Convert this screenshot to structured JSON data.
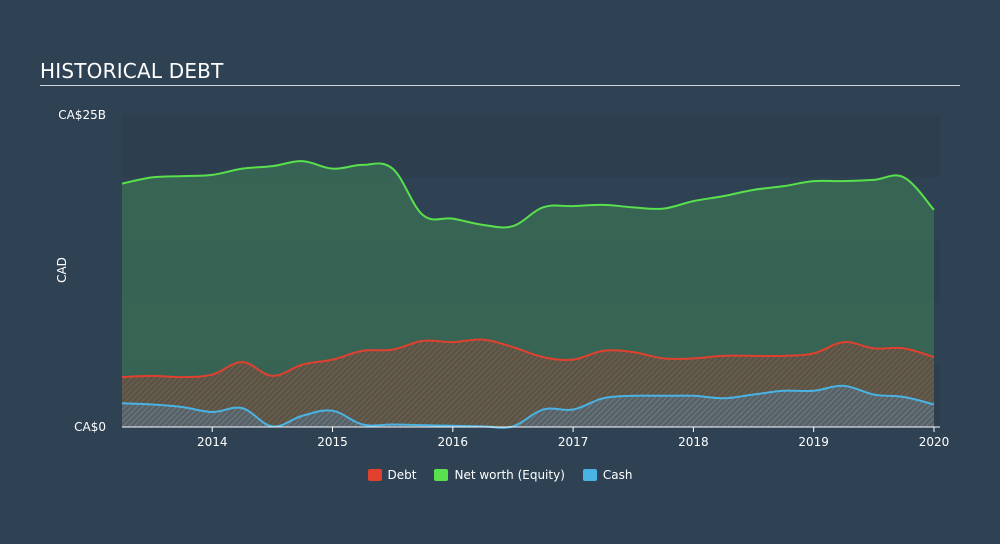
{
  "header": {
    "title": "HISTORICAL DEBT"
  },
  "chart_data": {
    "type": "area",
    "title": "HISTORICAL DEBT",
    "ylabel": "CAD",
    "ylim": [
      0,
      25
    ],
    "xlim": [
      2013.25,
      2020.05
    ],
    "y_tick_labels": [
      {
        "value": 25,
        "label": "CA$25B"
      },
      {
        "value": 0,
        "label": "CA$0"
      }
    ],
    "x_ticks": [
      {
        "value": 2014,
        "label": "2014"
      },
      {
        "value": 2015,
        "label": "2015"
      },
      {
        "value": 2016,
        "label": "2016"
      },
      {
        "value": 2017,
        "label": "2017"
      },
      {
        "value": 2018,
        "label": "2018"
      },
      {
        "value": 2019,
        "label": "2019"
      },
      {
        "value": 2020,
        "label": "2020"
      }
    ],
    "legend_position": "bottom-center",
    "series": [
      {
        "name": "Debt",
        "color": "#e0412f",
        "x": [
          2013.25,
          2013.5,
          2013.75,
          2014.0,
          2014.25,
          2014.5,
          2014.75,
          2015.0,
          2015.25,
          2015.5,
          2015.75,
          2016.0,
          2016.25,
          2016.5,
          2016.75,
          2017.0,
          2017.25,
          2017.5,
          2017.75,
          2018.0,
          2018.25,
          2018.5,
          2018.75,
          2019.0,
          2019.25,
          2019.5,
          2019.75,
          2020.0
        ],
        "values": [
          4.0,
          4.1,
          4.0,
          4.2,
          5.2,
          4.1,
          5.0,
          5.4,
          6.1,
          6.2,
          6.9,
          6.8,
          7.0,
          6.4,
          5.6,
          5.4,
          6.1,
          6.0,
          5.5,
          5.5,
          5.7,
          5.7,
          5.7,
          5.9,
          6.8,
          6.3,
          6.3,
          5.6
        ]
      },
      {
        "name": "Net worth (Equity)",
        "color": "#59e04d",
        "x": [
          2013.25,
          2013.5,
          2013.75,
          2014.0,
          2014.25,
          2014.5,
          2014.75,
          2015.0,
          2015.25,
          2015.5,
          2015.75,
          2016.0,
          2016.25,
          2016.5,
          2016.75,
          2017.0,
          2017.25,
          2017.5,
          2017.75,
          2018.0,
          2018.25,
          2018.5,
          2018.75,
          2019.0,
          2019.25,
          2019.5,
          2019.75,
          2020.0
        ],
        "values": [
          19.5,
          20.0,
          20.1,
          20.2,
          20.7,
          20.9,
          21.3,
          20.7,
          21.0,
          20.7,
          17.0,
          16.7,
          16.2,
          16.1,
          17.6,
          17.7,
          17.8,
          17.6,
          17.5,
          18.1,
          18.5,
          19.0,
          19.3,
          19.7,
          19.7,
          19.8,
          20.0,
          17.4
        ]
      },
      {
        "name": "Cash",
        "color": "#4ab3e3",
        "x": [
          2013.25,
          2013.5,
          2013.75,
          2014.0,
          2014.25,
          2014.5,
          2014.75,
          2015.0,
          2015.25,
          2015.5,
          2015.75,
          2016.0,
          2016.25,
          2016.5,
          2016.75,
          2017.0,
          2017.25,
          2017.5,
          2017.75,
          2018.0,
          2018.25,
          2018.5,
          2018.75,
          2019.0,
          2019.25,
          2019.5,
          2019.75,
          2020.0
        ],
        "values": [
          1.9,
          1.8,
          1.6,
          1.2,
          1.5,
          0.05,
          0.9,
          1.3,
          0.2,
          0.2,
          0.15,
          0.1,
          0.05,
          0.05,
          1.4,
          1.4,
          2.3,
          2.5,
          2.5,
          2.5,
          2.3,
          2.6,
          2.9,
          2.9,
          3.3,
          2.6,
          2.4,
          1.8
        ]
      }
    ]
  }
}
